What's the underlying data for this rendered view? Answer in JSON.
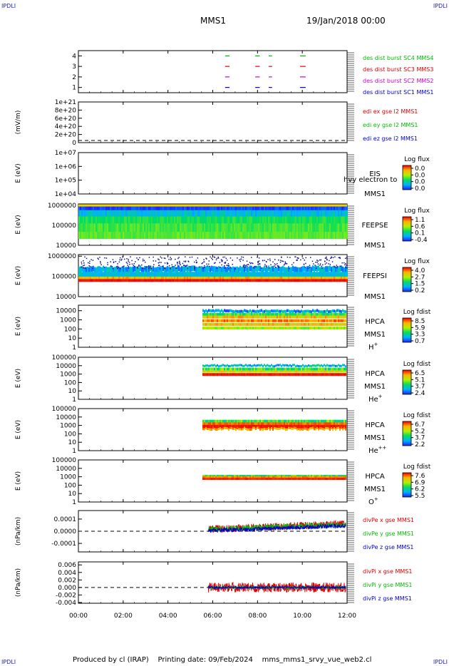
{
  "header": {
    "corner_label": "IPDLI",
    "mission": "MMS1",
    "date_time": "19/Jan/2018 00:00"
  },
  "footer": {
    "text": "Produced by cl (IRAP)    Printing date: 09/Feb/2024    mms_mms1_srvy_vue_web2.cl"
  },
  "x_axis": {
    "range": [
      0,
      12
    ],
    "unit": "hours",
    "ticks": [
      "00:00",
      "02:00",
      "04:00",
      "06:00",
      "08:00",
      "10:00",
      "12:00"
    ]
  },
  "chart_data": [
    {
      "id": "burst",
      "type": "scatter",
      "yticks": [
        "1",
        "2",
        "3",
        "4"
      ],
      "ylim": [
        0.5,
        4.5
      ],
      "ylabel": "",
      "intervals_hours": [
        [
          6.55,
          6.75
        ],
        [
          7.9,
          8.1
        ],
        [
          8.5,
          8.65
        ],
        [
          9.9,
          10.15
        ]
      ],
      "series": [
        {
          "name": "des dist burst SC1 MMS1",
          "level": 1,
          "color": "#0000cc"
        },
        {
          "name": "des dist burst SC2 MMS2",
          "level": 2,
          "color": "#cc00cc"
        },
        {
          "name": "des dist burst SC3 MMS3",
          "level": 3,
          "color": "#dd0000"
        },
        {
          "name": "des dist burst SC4 MMS4",
          "level": 4,
          "color": "#00bb00"
        }
      ]
    },
    {
      "id": "edi",
      "type": "line",
      "ylabel": "(mV/m)",
      "yticks": [
        "1e+21",
        "8e+20",
        "6e+20",
        "4e+20",
        "2e+20",
        "0"
      ],
      "ylim": [
        0,
        1e+21
      ],
      "series": [
        {
          "name": "edi ex gse l2 MMS1",
          "color": "#dd0000"
        },
        {
          "name": "edi ey gse l2 MMS1",
          "color": "#00bb00"
        },
        {
          "name": "edi ez gse l2 MMS1",
          "color": "#0000cc"
        }
      ]
    },
    {
      "id": "eis",
      "type": "heatmap",
      "ylabel": "E (eV)",
      "yscale": "log",
      "yticks": [
        "1e+07",
        "1e+06",
        "1e+05",
        "1e+04"
      ],
      "ylim": [
        10000.0,
        10000000.0
      ],
      "instrument": "EIS",
      "spacecraft": "MMS1",
      "overlay": "hvy electron to",
      "cbar_title": "Log flux",
      "cbar_ticks": [
        "0.0",
        "0.0",
        "0.0",
        "0.0"
      ]
    },
    {
      "id": "feepse",
      "type": "heatmap",
      "ylabel": "E (eV)",
      "yscale": "log",
      "yticks": [
        "1000000",
        "100000",
        "10000"
      ],
      "ylim": [
        10000.0,
        1200000.0
      ],
      "instrument": "FEEPSE",
      "spacecraft": "MMS1",
      "cbar_title": "Log flux",
      "cbar_ticks": [
        "1.1",
        "0.6",
        "0.1",
        "-0.4"
      ],
      "time_coverage_hours": [
        0,
        12
      ]
    },
    {
      "id": "feepsi",
      "type": "heatmap",
      "ylabel": "E (eV)",
      "yscale": "log",
      "yticks": [
        "1000000",
        "100000",
        "10000"
      ],
      "ylim": [
        10000.0,
        1200000.0
      ],
      "instrument": "FEEPSI",
      "spacecraft": "MMS1",
      "cbar_title": "Log flux",
      "cbar_ticks": [
        "4.0",
        "2.7",
        "1.5",
        "0.2"
      ],
      "time_coverage_hours": [
        0,
        12
      ]
    },
    {
      "id": "hpca_h",
      "type": "heatmap",
      "ylabel": "E (eV)",
      "yscale": "log",
      "yticks": [
        "10000",
        "1000",
        "100",
        "10",
        "1"
      ],
      "ylim": [
        1,
        40000
      ],
      "instrument": "HPCA",
      "spacecraft": "MMS1",
      "species": "H",
      "species_charge": "+",
      "cbar_title": "Log fdist",
      "cbar_ticks": [
        "8.5",
        "5.9",
        "3.3",
        "0.7"
      ],
      "time_coverage_hours": [
        5.55,
        11.95
      ]
    },
    {
      "id": "hpca_he",
      "type": "heatmap",
      "ylabel": "E (eV)",
      "yscale": "log",
      "yticks": [
        "100000",
        "10000",
        "1000",
        "100",
        "10",
        "1"
      ],
      "ylim": [
        1,
        100000
      ],
      "instrument": "HPCA",
      "spacecraft": "MMS1",
      "species": "He",
      "species_charge": "+",
      "cbar_title": "Log fdist",
      "cbar_ticks": [
        "6.5",
        "5.1",
        "3.7",
        "2.4"
      ],
      "time_coverage_hours": [
        5.55,
        11.95
      ]
    },
    {
      "id": "hpca_he2",
      "type": "heatmap",
      "ylabel": "E (eV)",
      "yscale": "log",
      "yticks": [
        "100000",
        "10000",
        "1000",
        "100",
        "10",
        "1"
      ],
      "ylim": [
        1,
        100000
      ],
      "instrument": "HPCA",
      "spacecraft": "MMS1",
      "species": "He",
      "species_charge": "++",
      "cbar_title": "Log fdist",
      "cbar_ticks": [
        "6.7",
        "5.2",
        "3.7",
        "2.2"
      ],
      "time_coverage_hours": [
        5.55,
        11.95
      ]
    },
    {
      "id": "hpca_o",
      "type": "heatmap",
      "ylabel": "E (eV)",
      "yscale": "log",
      "yticks": [
        "100000",
        "10000",
        "1000",
        "100",
        "10",
        "1"
      ],
      "ylim": [
        1,
        100000
      ],
      "instrument": "HPCA",
      "spacecraft": "MMS1",
      "species": "O",
      "species_charge": "+",
      "cbar_title": "Log fdist",
      "cbar_ticks": [
        "7.6",
        "6.9",
        "6.2",
        "5.5"
      ],
      "time_coverage_hours": [
        5.55,
        11.95
      ]
    },
    {
      "id": "divpe",
      "type": "line",
      "ylabel": "(nPa/km)",
      "yticks": [
        "0.0001",
        "0.0000",
        "-0.0001"
      ],
      "ylim": [
        -0.00017,
        0.00017
      ],
      "zero_line": true,
      "time_coverage_hours": [
        5.8,
        11.95
      ],
      "series": [
        {
          "name": "divPe x gse MMS1",
          "color": "#dd0000"
        },
        {
          "name": "divPe y gse MMS1",
          "color": "#00bb00"
        },
        {
          "name": "divPe z gse MMS1",
          "color": "#0000cc"
        }
      ]
    },
    {
      "id": "divpi",
      "type": "line",
      "ylabel": "(nPa/km)",
      "yticks": [
        "0.006",
        "0.004",
        "0.002",
        "0.000",
        "-0.002",
        "-0.004"
      ],
      "ylim": [
        -0.0042,
        0.0068
      ],
      "zero_line": true,
      "time_coverage_hours": [
        5.8,
        11.95
      ],
      "series": [
        {
          "name": "divPi x gse MMS1",
          "color": "#dd0000"
        },
        {
          "name": "divPi y gse MMS1",
          "color": "#00bb00"
        },
        {
          "name": "divPi z gse MMS1",
          "color": "#0000cc"
        }
      ]
    }
  ]
}
